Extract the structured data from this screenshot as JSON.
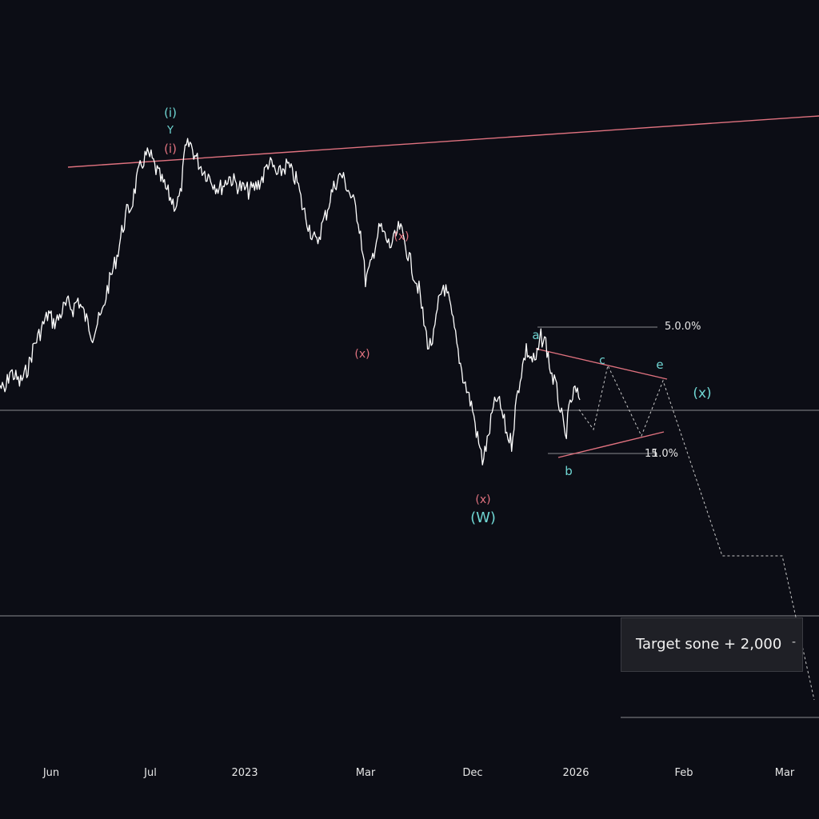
{
  "chart_data": {
    "type": "line",
    "title": "",
    "xlabel": "",
    "ylabel": "",
    "x_tick_labels": [
      "Jun",
      "Jul",
      "2023",
      "Mar",
      "Dec",
      "2026",
      "Feb",
      "Mar"
    ],
    "grid": false,
    "price_series": [
      {
        "t": 0,
        "v": 0.46
      },
      {
        "t": 1,
        "v": 0.43
      },
      {
        "t": 2,
        "v": 0.52
      },
      {
        "t": 3,
        "v": 0.5
      },
      {
        "t": 4,
        "v": 0.47
      },
      {
        "t": 5,
        "v": 0.5
      },
      {
        "t": 6,
        "v": 0.55
      },
      {
        "t": 7,
        "v": 0.63
      },
      {
        "t": 8,
        "v": 0.67
      },
      {
        "t": 9,
        "v": 0.72
      },
      {
        "t": 10,
        "v": 0.76
      },
      {
        "t": 11,
        "v": 0.72
      },
      {
        "t": 12,
        "v": 0.74
      },
      {
        "t": 13,
        "v": 0.78
      },
      {
        "t": 14,
        "v": 0.8
      },
      {
        "t": 15,
        "v": 0.78
      },
      {
        "t": 16,
        "v": 0.82
      },
      {
        "t": 17,
        "v": 0.77
      },
      {
        "t": 18,
        "v": 0.72
      },
      {
        "t": 19,
        "v": 0.67
      },
      {
        "t": 20,
        "v": 0.72
      },
      {
        "t": 21,
        "v": 0.76
      },
      {
        "t": 22,
        "v": 0.86
      },
      {
        "t": 23,
        "v": 0.93
      },
      {
        "t": 24,
        "v": 1.0
      },
      {
        "t": 25,
        "v": 1.1
      },
      {
        "t": 26,
        "v": 1.18
      },
      {
        "t": 27,
        "v": 1.21
      },
      {
        "t": 28,
        "v": 1.31
      },
      {
        "t": 29,
        "v": 1.38
      },
      {
        "t": 30,
        "v": 1.42
      },
      {
        "t": 31,
        "v": 1.41
      },
      {
        "t": 32,
        "v": 1.36
      },
      {
        "t": 33,
        "v": 1.32
      },
      {
        "t": 34,
        "v": 1.28
      },
      {
        "t": 35,
        "v": 1.24
      },
      {
        "t": 36,
        "v": 1.21
      },
      {
        "t": 37,
        "v": 1.25
      },
      {
        "t": 38,
        "v": 1.44
      },
      {
        "t": 39,
        "v": 1.47
      },
      {
        "t": 40,
        "v": 1.42
      },
      {
        "t": 41,
        "v": 1.38
      },
      {
        "t": 42,
        "v": 1.35
      },
      {
        "t": 43,
        "v": 1.33
      },
      {
        "t": 44,
        "v": 1.3
      },
      {
        "t": 45,
        "v": 1.28
      },
      {
        "t": 46,
        "v": 1.3
      },
      {
        "t": 47,
        "v": 1.33
      },
      {
        "t": 48,
        "v": 1.31
      },
      {
        "t": 49,
        "v": 1.29
      },
      {
        "t": 50,
        "v": 1.28
      },
      {
        "t": 51,
        "v": 1.27
      },
      {
        "t": 52,
        "v": 1.28
      },
      {
        "t": 53,
        "v": 1.3
      },
      {
        "t": 54,
        "v": 1.33
      },
      {
        "t": 55,
        "v": 1.39
      },
      {
        "t": 56,
        "v": 1.37
      },
      {
        "t": 57,
        "v": 1.33
      },
      {
        "t": 58,
        "v": 1.36
      },
      {
        "t": 59,
        "v": 1.38
      },
      {
        "t": 60,
        "v": 1.34
      },
      {
        "t": 61,
        "v": 1.31
      },
      {
        "t": 62,
        "v": 1.21
      },
      {
        "t": 63,
        "v": 1.15
      },
      {
        "t": 64,
        "v": 1.09
      },
      {
        "t": 65,
        "v": 1.05
      },
      {
        "t": 66,
        "v": 1.12
      },
      {
        "t": 67,
        "v": 1.18
      },
      {
        "t": 68,
        "v": 1.26
      },
      {
        "t": 69,
        "v": 1.31
      },
      {
        "t": 70,
        "v": 1.34
      },
      {
        "t": 71,
        "v": 1.3
      },
      {
        "t": 72,
        "v": 1.25
      },
      {
        "t": 73,
        "v": 1.2
      },
      {
        "t": 74,
        "v": 1.1
      },
      {
        "t": 75,
        "v": 0.9
      },
      {
        "t": 76,
        "v": 0.95
      },
      {
        "t": 77,
        "v": 1.05
      },
      {
        "t": 78,
        "v": 1.12
      },
      {
        "t": 79,
        "v": 1.08
      },
      {
        "t": 80,
        "v": 1.04
      },
      {
        "t": 81,
        "v": 1.07
      },
      {
        "t": 82,
        "v": 1.12
      },
      {
        "t": 83,
        "v": 1.06
      },
      {
        "t": 84,
        "v": 0.99
      },
      {
        "t": 85,
        "v": 0.92
      },
      {
        "t": 86,
        "v": 0.86
      },
      {
        "t": 87,
        "v": 0.72
      },
      {
        "t": 88,
        "v": 0.62
      },
      {
        "t": 89,
        "v": 0.66
      },
      {
        "t": 90,
        "v": 0.8
      },
      {
        "t": 91,
        "v": 0.88
      },
      {
        "t": 92,
        "v": 0.82
      },
      {
        "t": 93,
        "v": 0.72
      },
      {
        "t": 94,
        "v": 0.6
      },
      {
        "t": 95,
        "v": 0.5
      },
      {
        "t": 96,
        "v": 0.43
      },
      {
        "t": 97,
        "v": 0.36
      },
      {
        "t": 98,
        "v": 0.24
      },
      {
        "t": 99,
        "v": 0.15
      },
      {
        "t": 100,
        "v": 0.22
      },
      {
        "t": 101,
        "v": 0.34
      },
      {
        "t": 102,
        "v": 0.41
      },
      {
        "t": 103,
        "v": 0.35
      },
      {
        "t": 104,
        "v": 0.26
      },
      {
        "t": 105,
        "v": 0.22
      },
      {
        "t": 106,
        "v": 0.4
      },
      {
        "t": 107,
        "v": 0.52
      },
      {
        "t": 108,
        "v": 0.61
      },
      {
        "t": 109,
        "v": 0.57
      },
      {
        "t": 110,
        "v": 0.56
      },
      {
        "t": 111,
        "v": 0.66
      },
      {
        "t": 112,
        "v": 0.64
      },
      {
        "t": 113,
        "v": 0.52
      },
      {
        "t": 114,
        "v": 0.46
      },
      {
        "t": 115,
        "v": 0.36
      },
      {
        "t": 116,
        "v": 0.24
      },
      {
        "t": 117,
        "v": 0.38
      },
      {
        "t": 118,
        "v": 0.44
      },
      {
        "t": 119,
        "v": 0.4
      }
    ],
    "wave_labels": [
      {
        "text": "(i)",
        "color": "#6fd6d3"
      },
      {
        "text": "Y",
        "color": "#6fd6d3"
      },
      {
        "text": "(i)",
        "color": "#e0727f"
      },
      {
        "text": "(x)",
        "color": "#e0727f"
      },
      {
        "text": "(x)",
        "color": "#e0727f"
      },
      {
        "text": "(x)",
        "color": "#e0727f"
      },
      {
        "text": "(W)",
        "color": "#6fd6d3"
      },
      {
        "text": "a",
        "color": "#6fd6d3"
      },
      {
        "text": "b",
        "color": "#6fd6d3"
      },
      {
        "text": "c",
        "color": "#6fd6d3"
      },
      {
        "text": "e",
        "color": "#6fd6d3"
      },
      {
        "text": "(x)",
        "color": "#6fd6d3"
      }
    ],
    "level_labels": [
      "5.0.0%",
      "1.0%",
      "15"
    ],
    "annotation": "Target sone + 2,000",
    "annotation_marker": "-",
    "colors": {
      "background": "#0c0d15",
      "price": "#ffffff",
      "trendline": "#e0727f",
      "wave_cyan": "#6fd6d3",
      "wave_pink": "#e0727f",
      "guide": "#8a8b90",
      "axis_text": "#e6e6e6"
    }
  }
}
